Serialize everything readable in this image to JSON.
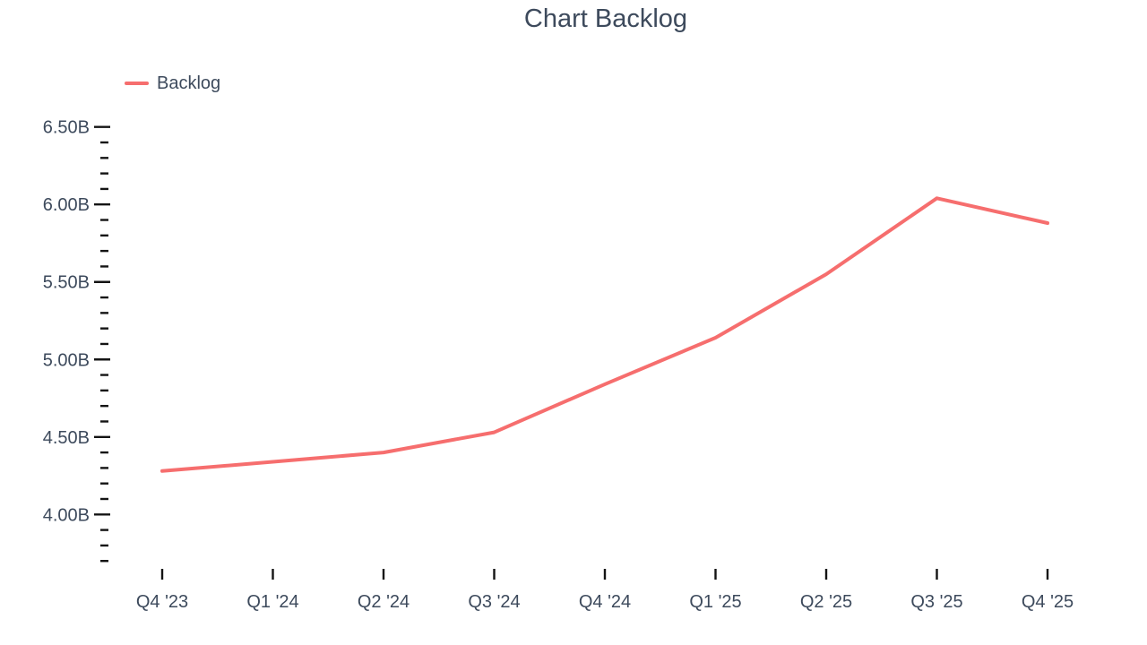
{
  "chart_data": {
    "type": "line",
    "title": "Chart Backlog",
    "categories": [
      "Q4 '23",
      "Q1 '24",
      "Q2 '24",
      "Q3 '24",
      "Q4 '24",
      "Q1 '25",
      "Q2 '25",
      "Q3 '25",
      "Q4 '25"
    ],
    "series": [
      {
        "name": "Backlog",
        "values": [
          4.28,
          4.34,
          4.4,
          4.53,
          4.84,
          5.14,
          5.55,
          6.04,
          5.88
        ],
        "color": "#f66e6e"
      }
    ],
    "unit": "B",
    "xlabel": "",
    "ylabel": "",
    "y_axis": {
      "min": 3.7,
      "max": 6.5,
      "major_tick_step": 0.5,
      "minor_tick_step": 0.1,
      "major_tick_values": [
        6.5,
        6.0,
        5.5,
        5.0,
        4.5,
        4.0
      ],
      "major_tick_labels": [
        "6.50B",
        "6.00B",
        "5.50B",
        "5.00B",
        "4.50B",
        "4.00B"
      ]
    },
    "legend": {
      "position": "top-left",
      "entries": [
        {
          "label": "Backlog",
          "color": "#f66e6e"
        }
      ]
    },
    "grid": false
  },
  "colors": {
    "line": "#f66e6e",
    "text": "#3d4a5c",
    "tick": "#141414",
    "background": "#ffffff"
  }
}
